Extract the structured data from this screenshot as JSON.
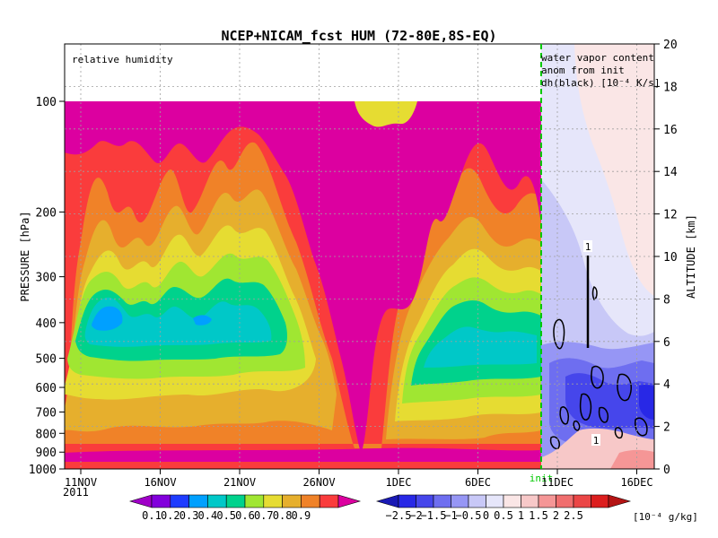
{
  "chart_data": {
    "type": "heatmap",
    "title": "NCEP+NICAM_fcst HUM (72-80E,8S-EQ)",
    "left_panel_label": "relative humidity",
    "right_panel_label": [
      "water vapor content",
      "anom from init",
      "dh(black) [10⁻⁴ K/s]"
    ],
    "ylabel_left": "PRESSURE [hPa]",
    "ylabel_right": "ALTITUDE [km]",
    "x_ticks": [
      "11NOV",
      "16NOV",
      "21NOV",
      "26NOV",
      "1DEC",
      "6DEC",
      "11DEC",
      "16DEC"
    ],
    "x_year": "2011",
    "init_label": "init",
    "y_ticks_pressure": [
      "100",
      "200",
      "300",
      "400",
      "500",
      "600",
      "700",
      "800",
      "900",
      "1000"
    ],
    "y_ticks_altitude": [
      "0",
      "2",
      "4",
      "6",
      "8",
      "10",
      "12",
      "14",
      "16",
      "18",
      "20"
    ],
    "contour_labels": [
      "1",
      "1"
    ],
    "colorbar_left": {
      "levels": [
        "0.1",
        "0.2",
        "0.3",
        "0.4",
        "0.5",
        "0.6",
        "0.7",
        "0.8",
        "0.9"
      ],
      "colors": [
        "#a000c8",
        "#8200dc",
        "#1e3cff",
        "#00a0ff",
        "#00c8c8",
        "#00d28c",
        "#a0e632",
        "#e6dc32",
        "#e6af2d",
        "#f08228",
        "#fa3c3c",
        "#dc00a0"
      ]
    },
    "colorbar_right": {
      "levels": [
        "−2.5",
        "−2",
        "−1.5",
        "−1",
        "−0.5",
        "0",
        "0.5",
        "1",
        "1.5",
        "2",
        "2.5"
      ],
      "colors": [
        "#1a1ab5",
        "#2828e6",
        "#4646eb",
        "#6e6ef0",
        "#9696f5",
        "#c8c8f7",
        "#e6e6fa",
        "#fae6e6",
        "#f7c8c8",
        "#f59696",
        "#f06e6e",
        "#eb4646",
        "#dc1e1e",
        "#b41414"
      ],
      "unit": "[10⁻⁴ g/kg]"
    },
    "colors": {
      "init_line": "#00c800",
      "grid": "#a0a0a0"
    }
  }
}
